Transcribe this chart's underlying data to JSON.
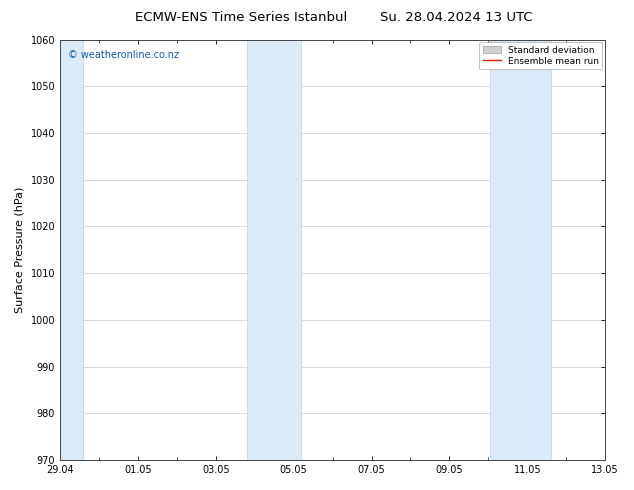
{
  "title_left": "ECMW-ENS Time Series Istanbul",
  "title_right": "Su. 28.04.2024 13 UTC",
  "ylabel": "Surface Pressure (hPa)",
  "ylim": [
    970,
    1060
  ],
  "yticks": [
    970,
    980,
    990,
    1000,
    1010,
    1020,
    1030,
    1040,
    1050,
    1060
  ],
  "xtick_labels": [
    "29.04",
    "01.05",
    "03.05",
    "05.05",
    "07.05",
    "09.05",
    "11.05",
    "13.05"
  ],
  "xmin": 0.0,
  "xmax": 14.0,
  "xtick_positions": [
    0,
    2,
    4,
    6,
    8,
    10,
    12,
    14
  ],
  "shaded_bands": [
    {
      "xmin": -0.05,
      "xmax": 0.6
    },
    {
      "xmin": 4.8,
      "xmax": 6.2
    },
    {
      "xmin": 11.05,
      "xmax": 12.6
    }
  ],
  "shaded_color": "#daeaf7",
  "shaded_edge_color": "#b8d4e8",
  "background_color": "#ffffff",
  "watermark_text": "© weatheronline.co.nz",
  "watermark_color": "#1155bb",
  "legend_std_label": "Standard deviation",
  "legend_mean_label": "Ensemble mean run",
  "legend_std_facecolor": "#d0d0d0",
  "legend_std_edgecolor": "#aaaaaa",
  "legend_mean_color": "#dd2200",
  "grid_color": "#cccccc",
  "title_fontsize": 9.5,
  "tick_fontsize": 7,
  "ylabel_fontsize": 8,
  "watermark_fontsize": 7,
  "legend_fontsize": 6.5
}
